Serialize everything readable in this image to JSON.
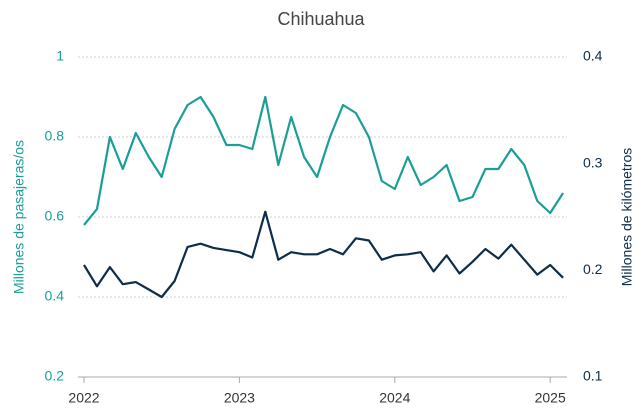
{
  "chart_data": {
    "type": "line",
    "title": "Chihuahua",
    "y_label": "Millones de pasajeras/os",
    "y2_label": "Millones de kilómetros",
    "x": [
      "2022-01",
      "2022-02",
      "2022-03",
      "2022-04",
      "2022-05",
      "2022-06",
      "2022-07",
      "2022-08",
      "2022-09",
      "2022-10",
      "2022-11",
      "2022-12",
      "2023-01",
      "2023-02",
      "2023-03",
      "2023-04",
      "2023-05",
      "2023-06",
      "2023-07",
      "2023-08",
      "2023-09",
      "2023-10",
      "2023-11",
      "2023-12",
      "2024-01",
      "2024-02",
      "2024-03",
      "2024-04",
      "2024-05",
      "2024-06",
      "2024-07",
      "2024-08",
      "2024-09",
      "2024-10",
      "2024-11",
      "2024-12",
      "2025-01",
      "2025-02"
    ],
    "series": [
      {
        "name": "Millones de pasajeras/os",
        "color": "#1a9e96",
        "axis": "y",
        "values": [
          0.58,
          0.62,
          0.8,
          0.72,
          0.81,
          0.75,
          0.7,
          0.82,
          0.88,
          0.9,
          0.85,
          0.78,
          0.78,
          0.77,
          0.9,
          0.73,
          0.85,
          0.75,
          0.7,
          0.8,
          0.88,
          0.86,
          0.8,
          0.69,
          0.67,
          0.75,
          0.68,
          0.7,
          0.73,
          0.64,
          0.65,
          0.72,
          0.72,
          0.77,
          0.73,
          0.64,
          0.61,
          0.66
        ]
      },
      {
        "name": "Millones de kilómetros",
        "color": "#0d2d4a",
        "axis": "y2",
        "values": [
          0.205,
          0.185,
          0.203,
          0.187,
          0.189,
          0.182,
          0.175,
          0.19,
          0.222,
          0.225,
          0.221,
          0.219,
          0.217,
          0.212,
          0.255,
          0.21,
          0.217,
          0.215,
          0.215,
          0.22,
          0.215,
          0.23,
          0.228,
          0.21,
          0.214,
          0.215,
          0.217,
          0.199,
          0.214,
          0.197,
          0.208,
          0.22,
          0.211,
          0.224,
          0.21,
          0.196,
          0.205,
          0.193
        ]
      }
    ],
    "xticks": [
      {
        "value": "2022-01",
        "label": "2022"
      },
      {
        "value": "2023-01",
        "label": "2023"
      },
      {
        "value": "2024-01",
        "label": "2024"
      },
      {
        "value": "2025-01",
        "label": "2025"
      }
    ],
    "ylim": [
      0.2,
      1.0
    ],
    "yticks": [
      0.2,
      0.4,
      0.6,
      0.8,
      1.0
    ],
    "y2lim": [
      0.1,
      0.4
    ],
    "y2ticks": [
      0.1,
      0.2,
      0.3,
      0.4
    ],
    "grid": true
  }
}
